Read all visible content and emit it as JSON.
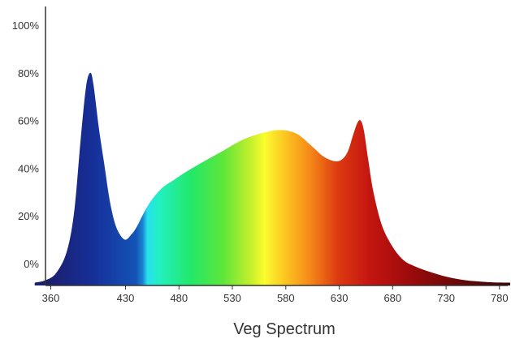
{
  "chart_data": {
    "type": "area",
    "title": "",
    "xlabel": "Veg Spectrum",
    "ylabel": "",
    "x_ticks": [
      360,
      430,
      480,
      530,
      580,
      630,
      680,
      730,
      780
    ],
    "x_tick_labels": [
      "360",
      "430",
      "480",
      "530",
      "580",
      "630",
      "680",
      "730",
      "780"
    ],
    "y_ticks": [
      0,
      20,
      40,
      60,
      80,
      100
    ],
    "y_tick_labels": [
      "0%",
      "20%",
      "40%",
      "60%",
      "80%",
      "100%"
    ],
    "xlim": [
      330,
      790
    ],
    "ylim": [
      -8,
      105
    ],
    "grid": false,
    "legend": false,
    "fill": "visible-spectrum-gradient",
    "series": [
      {
        "x": [
          345,
          355,
          365,
          375,
          382,
          388,
          393,
          397,
          400,
          405,
          410,
          415,
          420,
          425,
          430,
          435,
          440,
          448,
          455,
          465,
          475,
          485,
          500,
          520,
          540,
          560,
          575,
          590,
          605,
          615,
          625,
          632,
          638,
          643,
          647,
          650,
          653,
          657,
          662,
          670,
          680,
          690,
          700,
          715,
          730,
          745,
          760,
          775,
          790
        ],
        "values": [
          -8,
          -7,
          -4,
          5,
          22,
          52,
          74,
          80,
          75,
          57,
          42,
          27,
          17,
          12,
          10,
          12,
          15,
          22,
          27,
          32,
          35,
          38,
          42,
          47,
          52,
          55,
          56,
          54.5,
          49,
          45,
          43,
          43.5,
          47,
          54,
          59,
          60,
          56,
          44,
          30,
          16,
          7,
          1.5,
          -1,
          -3.5,
          -5.5,
          -6.8,
          -7.5,
          -7.9,
          -8
        ]
      }
    ]
  }
}
